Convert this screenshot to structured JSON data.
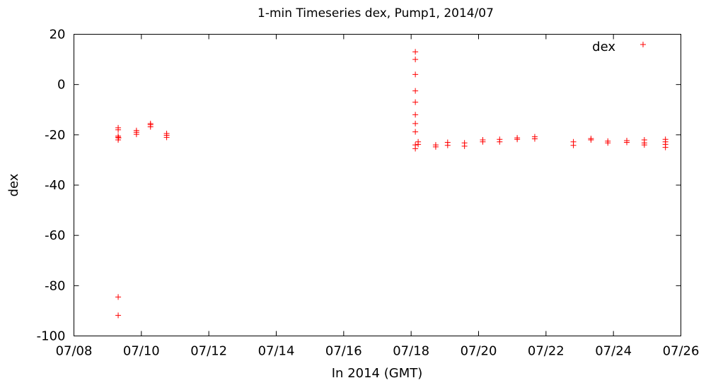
{
  "chart_data": {
    "type": "scatter",
    "title": "1-min Timeseries dex, Pump1, 2014/07",
    "xlabel": "In 2014 (GMT)",
    "ylabel": "dex",
    "xlim": [
      "2014-07-08",
      "2014-07-26"
    ],
    "ylim": [
      -100,
      20
    ],
    "x_ticks": [
      "07/08",
      "07/10",
      "07/12",
      "07/14",
      "07/16",
      "07/18",
      "07/20",
      "07/22",
      "07/24",
      "07/26"
    ],
    "y_ticks": [
      "20",
      "0",
      "-20",
      "-40",
      "-60",
      "-80",
      "-100"
    ],
    "grid": false,
    "legend_position": "top-right",
    "marker": "plus",
    "series": [
      {
        "name": "dex",
        "color": "#ff0000",
        "points": [
          [
            "2014-07-09 07:30",
            -17.2
          ],
          [
            "2014-07-09 07:30",
            -18.0
          ],
          [
            "2014-07-09 07:30",
            -20.5
          ],
          [
            "2014-07-09 07:30",
            -21.0
          ],
          [
            "2014-07-09 07:30",
            -22.0
          ],
          [
            "2014-07-09 07:30",
            -84.5
          ],
          [
            "2014-07-09 07:30",
            -91.8
          ],
          [
            "2014-07-09 07:45",
            -21.2
          ],
          [
            "2014-07-09 20:30",
            -18.3
          ],
          [
            "2014-07-09 20:30",
            -19.0
          ],
          [
            "2014-07-09 20:30",
            -19.8
          ],
          [
            "2014-07-10 06:30",
            -15.5
          ],
          [
            "2014-07-10 06:30",
            -16.0
          ],
          [
            "2014-07-10 06:30",
            -16.8
          ],
          [
            "2014-07-10 18:00",
            -19.5
          ],
          [
            "2014-07-10 18:00",
            -20.2
          ],
          [
            "2014-07-10 18:00",
            -21.0
          ],
          [
            "2014-07-18 03:00",
            13.0
          ],
          [
            "2014-07-18 03:00",
            10.0
          ],
          [
            "2014-07-18 03:00",
            4.0
          ],
          [
            "2014-07-18 03:00",
            -2.5
          ],
          [
            "2014-07-18 03:00",
            -7.0
          ],
          [
            "2014-07-18 03:00",
            -12.0
          ],
          [
            "2014-07-18 03:00",
            -15.5
          ],
          [
            "2014-07-18 03:00",
            -18.8
          ],
          [
            "2014-07-18 03:00",
            -24.0
          ],
          [
            "2014-07-18 03:00",
            -25.5
          ],
          [
            "2014-07-18 05:00",
            -22.8
          ],
          [
            "2014-07-18 05:00",
            -23.8
          ],
          [
            "2014-07-18 17:30",
            -24.0
          ],
          [
            "2014-07-18 17:30",
            -24.8
          ],
          [
            "2014-07-19 02:00",
            -23.0
          ],
          [
            "2014-07-19 02:00",
            -24.2
          ],
          [
            "2014-07-19 14:00",
            -23.2
          ],
          [
            "2014-07-19 14:00",
            -24.5
          ],
          [
            "2014-07-20 03:00",
            -22.0
          ],
          [
            "2014-07-20 03:00",
            -22.8
          ],
          [
            "2014-07-20 15:00",
            -21.8
          ],
          [
            "2014-07-20 15:00",
            -22.8
          ],
          [
            "2014-07-21 03:30",
            -21.2
          ],
          [
            "2014-07-21 03:30",
            -21.8
          ],
          [
            "2014-07-21 16:00",
            -20.8
          ],
          [
            "2014-07-21 16:00",
            -21.6
          ],
          [
            "2014-07-22 19:30",
            -22.8
          ],
          [
            "2014-07-22 19:30",
            -24.2
          ],
          [
            "2014-07-23 08:00",
            -21.5
          ],
          [
            "2014-07-23 08:00",
            -22.0
          ],
          [
            "2014-07-23 20:00",
            -22.5
          ],
          [
            "2014-07-23 20:00",
            -23.2
          ],
          [
            "2014-07-24 09:30",
            -22.3
          ],
          [
            "2014-07-24 09:30",
            -23.0
          ],
          [
            "2014-07-24 22:00",
            -22.0
          ],
          [
            "2014-07-24 22:00",
            -23.2
          ],
          [
            "2014-07-24 22:00",
            -24.0
          ],
          [
            "2014-07-25 13:00",
            -21.8
          ],
          [
            "2014-07-25 13:00",
            -22.8
          ],
          [
            "2014-07-25 13:00",
            -23.8
          ],
          [
            "2014-07-25 13:00",
            -25.0
          ]
        ]
      }
    ]
  }
}
